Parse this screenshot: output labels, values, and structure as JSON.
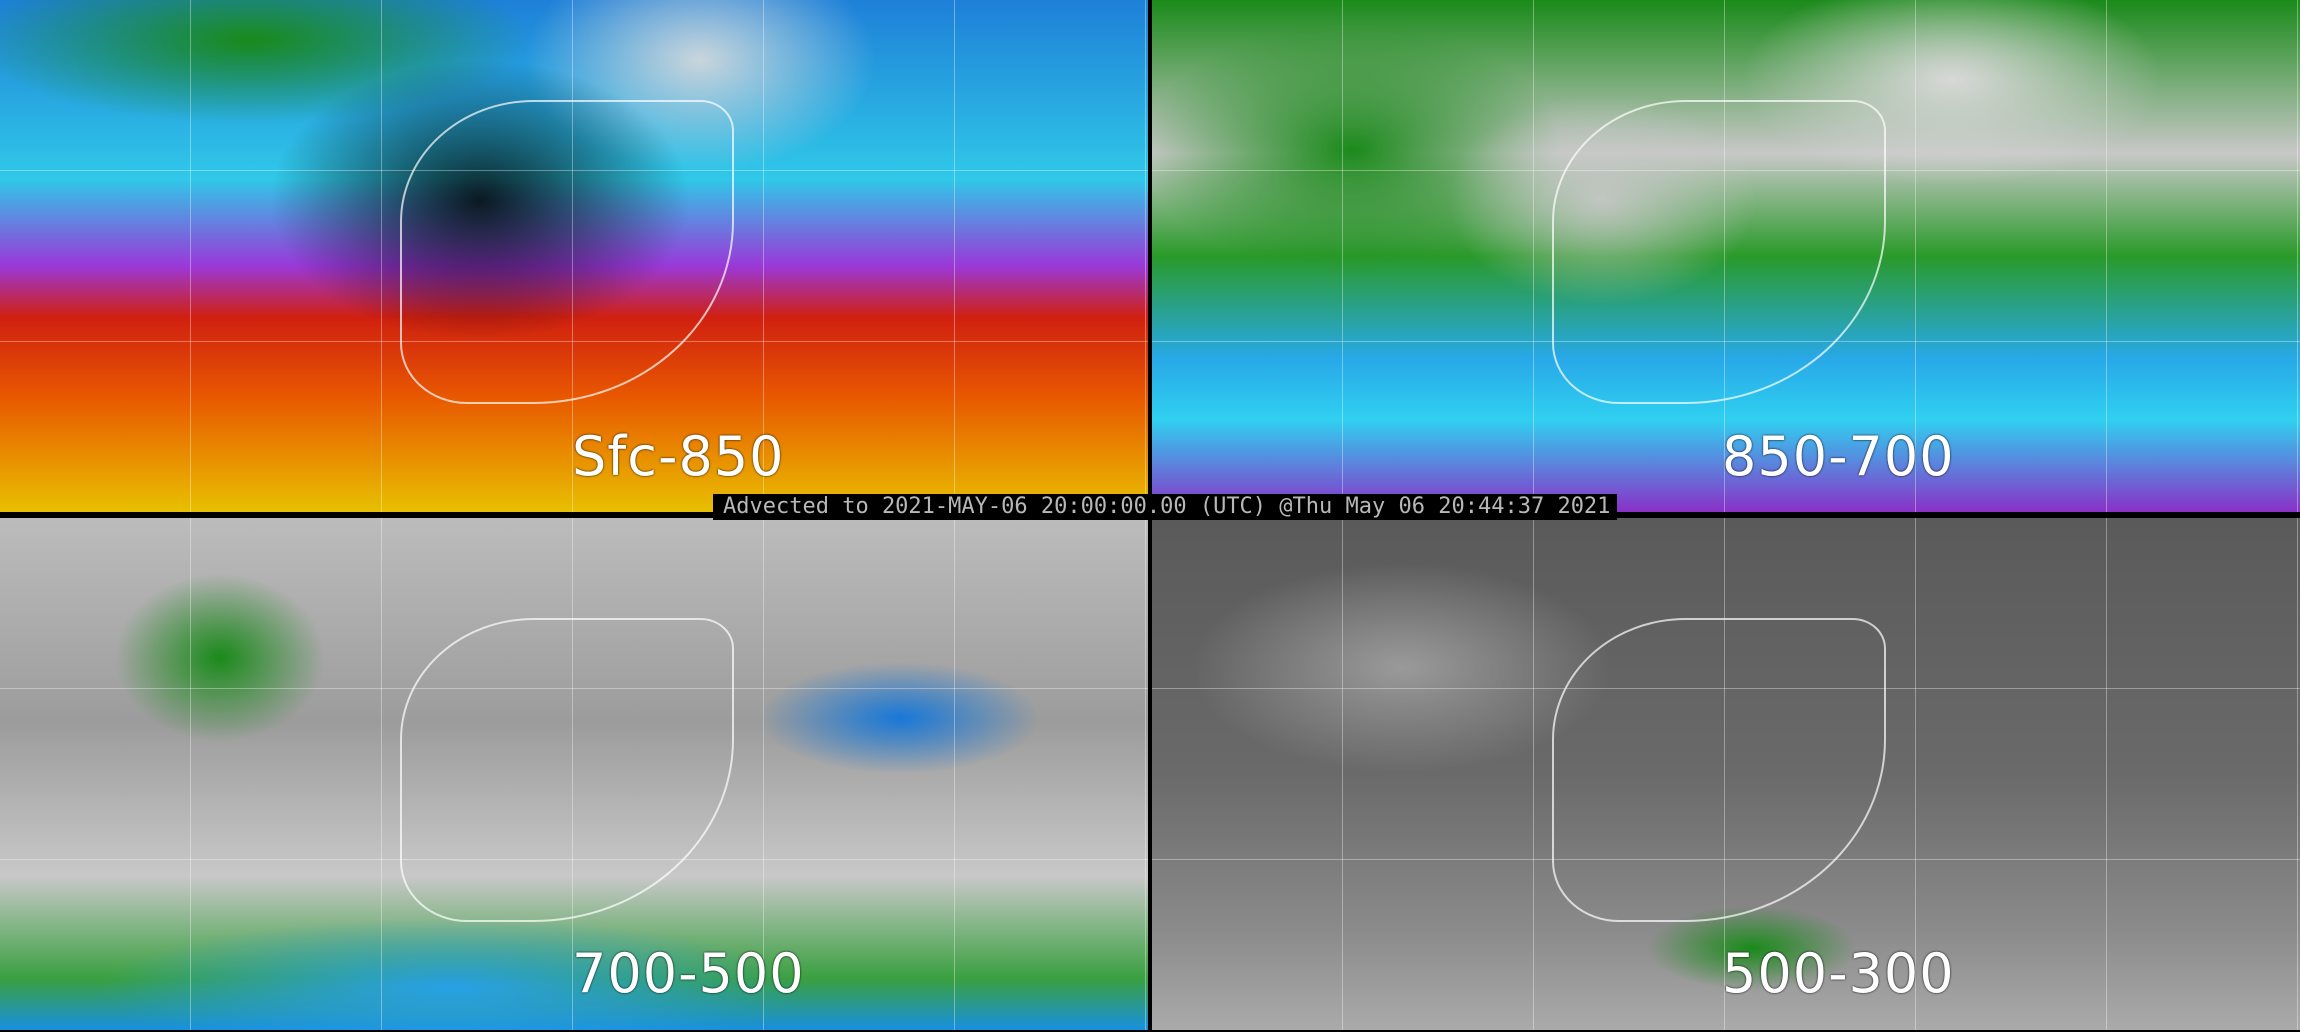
{
  "panels": [
    {
      "label": "Sfc-850"
    },
    {
      "label": "850-700"
    },
    {
      "label": "700-500"
    },
    {
      "label": "500-300"
    }
  ],
  "timestamp": "Advected to 2021-MAY-06 20:00:00.00 (UTC) @Thu May 06 20:44:37 2021"
}
